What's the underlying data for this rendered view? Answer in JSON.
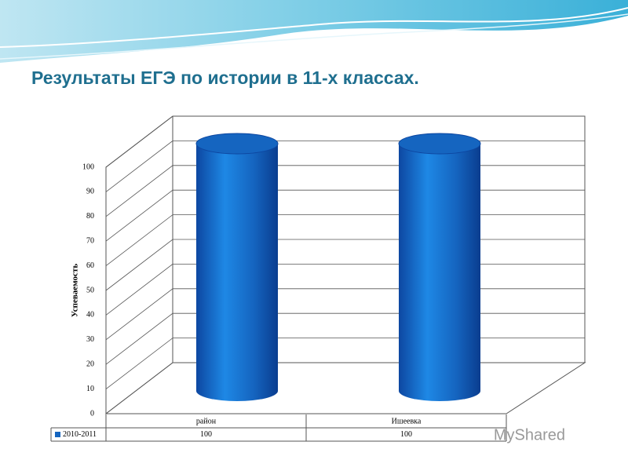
{
  "chart_data": {
    "type": "bar",
    "title": "Результаты  ЕГЭ по истории в 11-х классах.",
    "y_label": "Успеваемость",
    "categories": [
      "район",
      "Ишеевка"
    ],
    "series": [
      {
        "name": "2010-2011",
        "color": "#1565c0",
        "values": [
          100,
          100
        ]
      }
    ],
    "ylim": [
      0,
      100
    ],
    "yticks": [
      0,
      10,
      20,
      30,
      40,
      50,
      60,
      70,
      80,
      90,
      100
    ],
    "grid": true,
    "watermark": "MyShared"
  }
}
